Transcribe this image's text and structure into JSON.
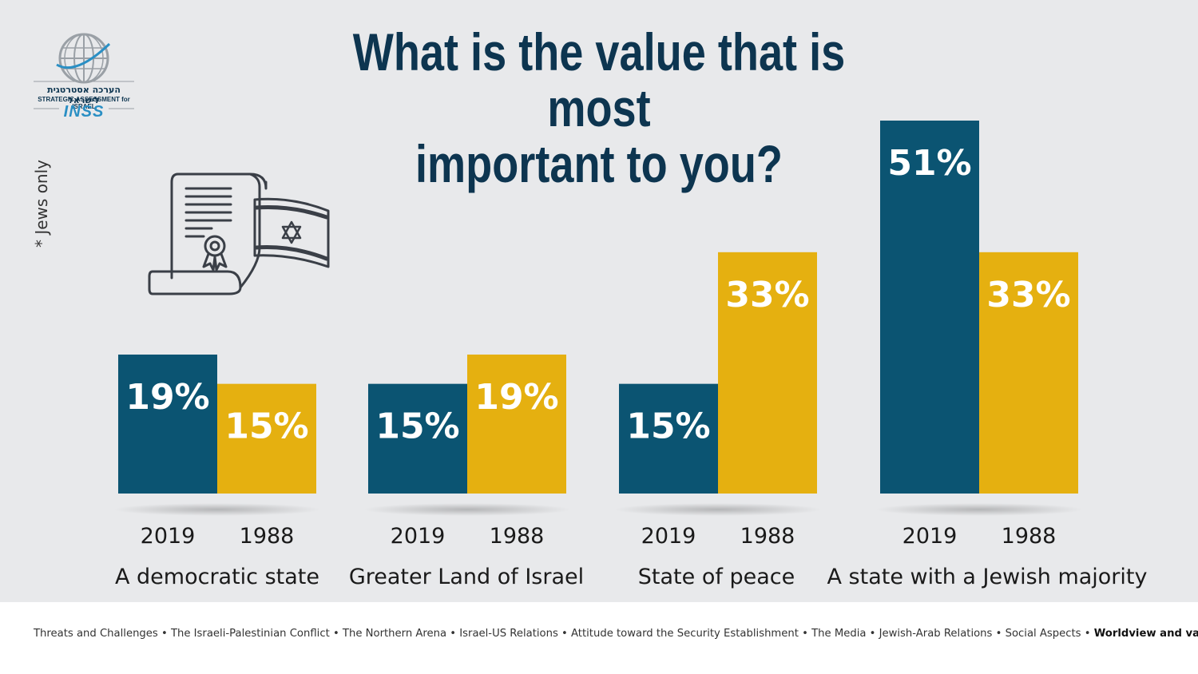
{
  "title_line1": "What is the value that is most",
  "title_line2": "important to you?",
  "note": "* Jews only",
  "logo": {
    "hebrew": "הערכה אסטרטגית לישראל",
    "english": "STRATEGIC ASSESSMENT for ISRAEL",
    "name": "INSS"
  },
  "colors": {
    "series_2019": "#0b5472",
    "series_1988": "#e5b010",
    "title": "#0d3550",
    "background": "#e8e9eb"
  },
  "chart_data": {
    "type": "bar",
    "categories": [
      "A democratic state",
      "Greater Land of Israel",
      "State of peace",
      "A state with a Jewish majority"
    ],
    "series": [
      {
        "name": "2019",
        "values": [
          19,
          15,
          15,
          51
        ],
        "labels": [
          "19%",
          "15%",
          "15%",
          "51%"
        ]
      },
      {
        "name": "1988",
        "values": [
          15,
          19,
          33,
          33
        ],
        "labels": [
          "15%",
          "19%",
          "33%",
          "33%"
        ]
      }
    ],
    "title": "What is the value that is most important to you?",
    "ylim": [
      0,
      51
    ],
    "grid": false
  },
  "footer": {
    "items": [
      "Threats and Challenges",
      "The Israeli-Palestinian Conflict",
      "The Northern  Arena",
      "Israel-US Relations",
      "Attitude toward the Security Establishment",
      "The Media",
      "Jewish-Arab Relations",
      "Social Aspects",
      "Worldview and values"
    ],
    "current": "Worldview and values"
  }
}
